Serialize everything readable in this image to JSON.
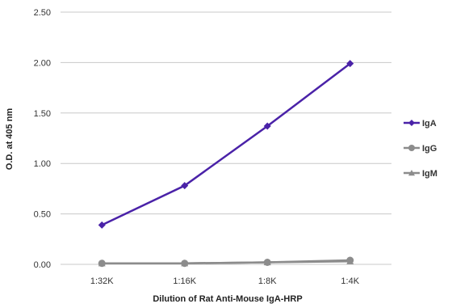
{
  "chart_data": {
    "type": "line",
    "categories": [
      "1:32K",
      "1:16K",
      "1:8K",
      "1:4K"
    ],
    "series": [
      {
        "name": "IgA",
        "values": [
          0.39,
          0.78,
          1.37,
          1.99
        ],
        "color": "#4a22a8",
        "marker": "diamond"
      },
      {
        "name": "IgG",
        "values": [
          0.01,
          0.01,
          0.02,
          0.04
        ],
        "color": "#8c8c8c",
        "marker": "circle"
      },
      {
        "name": "IgM",
        "values": [
          0.01,
          0.01,
          0.02,
          0.03
        ],
        "color": "#8c8c8c",
        "marker": "triangle"
      }
    ],
    "title": "",
    "xlabel": "Dilution of Rat Anti-Mouse IgA-HRP",
    "ylabel": "O.D. at 405 nm",
    "ylim": [
      0,
      2.5
    ],
    "yticks": [
      "0.00",
      "0.50",
      "1.00",
      "1.50",
      "2.00",
      "2.50"
    ],
    "grid": "horizontal",
    "legend_position": "right"
  }
}
